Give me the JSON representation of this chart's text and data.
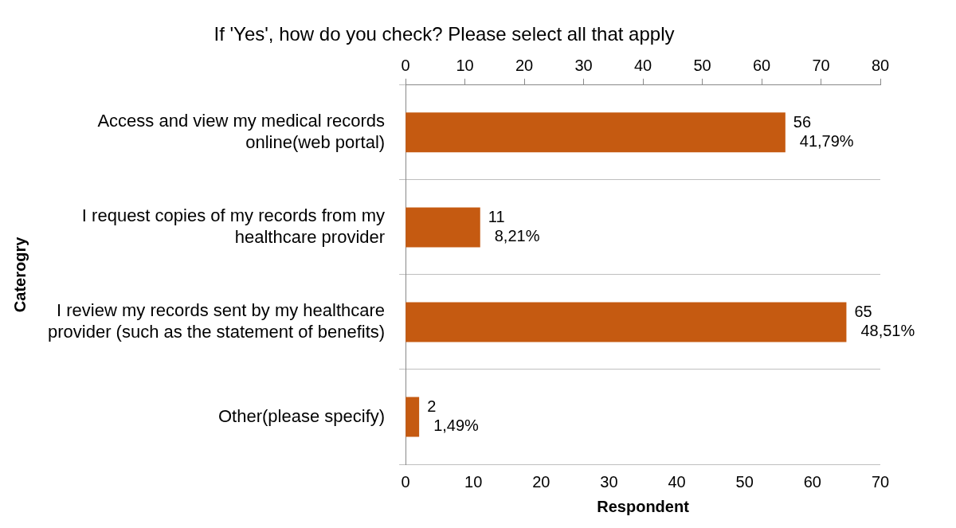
{
  "chart_data": {
    "type": "bar",
    "orientation": "horizontal",
    "title": "If 'Yes', how do you check? Please select all that apply",
    "xlabel": "Respondent",
    "ylabel": "Caterogry",
    "categories": [
      "Access and view my medical records online(web portal)",
      "I request copies of my records from my healthcare provider",
      "I review my records sent by my healthcare provider (such as the statement of benefits)",
      "Other(please specify)"
    ],
    "values": [
      56,
      11,
      65,
      2
    ],
    "color": "#c55a11",
    "value_labels": [
      "56\n41,79%",
      "11\n8,21%",
      "65\n48,51%",
      "2\n1,49%"
    ],
    "xlim": [
      0,
      70
    ],
    "xticks": [
      0,
      10,
      20,
      30,
      40,
      50,
      60,
      70
    ],
    "x2lim": [
      0,
      80
    ],
    "x2ticks": [
      0,
      10,
      20,
      30,
      40,
      50,
      60,
      70,
      80
    ],
    "grid": "y",
    "legend": false
  }
}
